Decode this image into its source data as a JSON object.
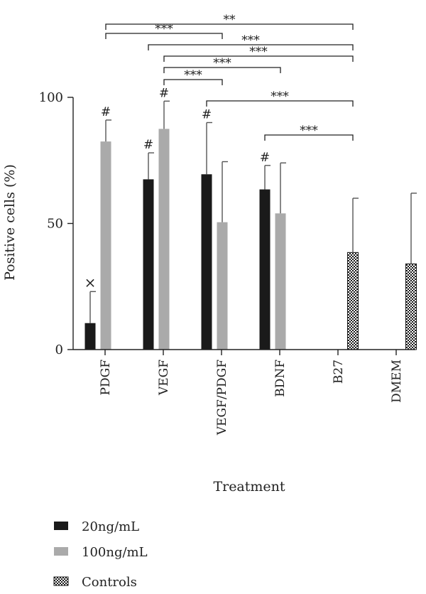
{
  "chart_data": {
    "type": "bar",
    "xlabel": "Treatment",
    "ylabel": "Positive cells (%)",
    "ylim": [
      0,
      100
    ],
    "yticks": [
      0,
      50,
      100
    ],
    "categories": [
      "PDGF",
      "VEGF",
      "VEGF/PDGF",
      "BDNF",
      "B27",
      "DMEM"
    ],
    "series": [
      {
        "name": "20ng/mL",
        "color": "#1a1a1a",
        "pattern": "solid",
        "values": [
          10.5,
          67.5,
          69.5,
          63.5,
          null,
          null
        ],
        "errors": [
          12.5,
          10.5,
          20.5,
          9.5,
          null,
          null
        ]
      },
      {
        "name": "100ng/mL",
        "color": "#aaaaaa",
        "pattern": "solid",
        "values": [
          82.5,
          87.5,
          50.5,
          54,
          null,
          null
        ],
        "errors": [
          8.5,
          11,
          24,
          20,
          null,
          null
        ]
      },
      {
        "name": "Controls",
        "color": "#1a1a1a",
        "pattern": "checker",
        "values": [
          null,
          null,
          null,
          null,
          38.5,
          34
        ],
        "errors": [
          null,
          null,
          null,
          null,
          21.5,
          28
        ]
      }
    ],
    "bar_marks": [
      {
        "category": 0,
        "series": 0,
        "text": "×"
      },
      {
        "category": 0,
        "series": 1,
        "text": "#"
      },
      {
        "category": 1,
        "series": 0,
        "text": "#"
      },
      {
        "category": 1,
        "series": 1,
        "text": "#"
      },
      {
        "category": 2,
        "series": 0,
        "text": "#"
      },
      {
        "category": 3,
        "series": 0,
        "text": "#"
      }
    ],
    "significance": [
      {
        "from": [
          0,
          1
        ],
        "to": [
          4,
          2
        ],
        "text": "**"
      },
      {
        "from": [
          0,
          1
        ],
        "to": [
          2,
          1
        ],
        "text": "***"
      },
      {
        "from": [
          1,
          0
        ],
        "to": [
          4,
          2
        ],
        "text": "***"
      },
      {
        "from": [
          1,
          1
        ],
        "to": [
          4,
          2
        ],
        "text": "***"
      },
      {
        "from": [
          1,
          1
        ],
        "to": [
          3,
          1
        ],
        "text": "***"
      },
      {
        "from": [
          1,
          1
        ],
        "to": [
          2,
          1
        ],
        "text": "***"
      },
      {
        "from": [
          2,
          0
        ],
        "to": [
          4,
          2
        ],
        "text": "***"
      },
      {
        "from": [
          3,
          0
        ],
        "to": [
          4,
          2
        ],
        "text": "***"
      }
    ]
  }
}
